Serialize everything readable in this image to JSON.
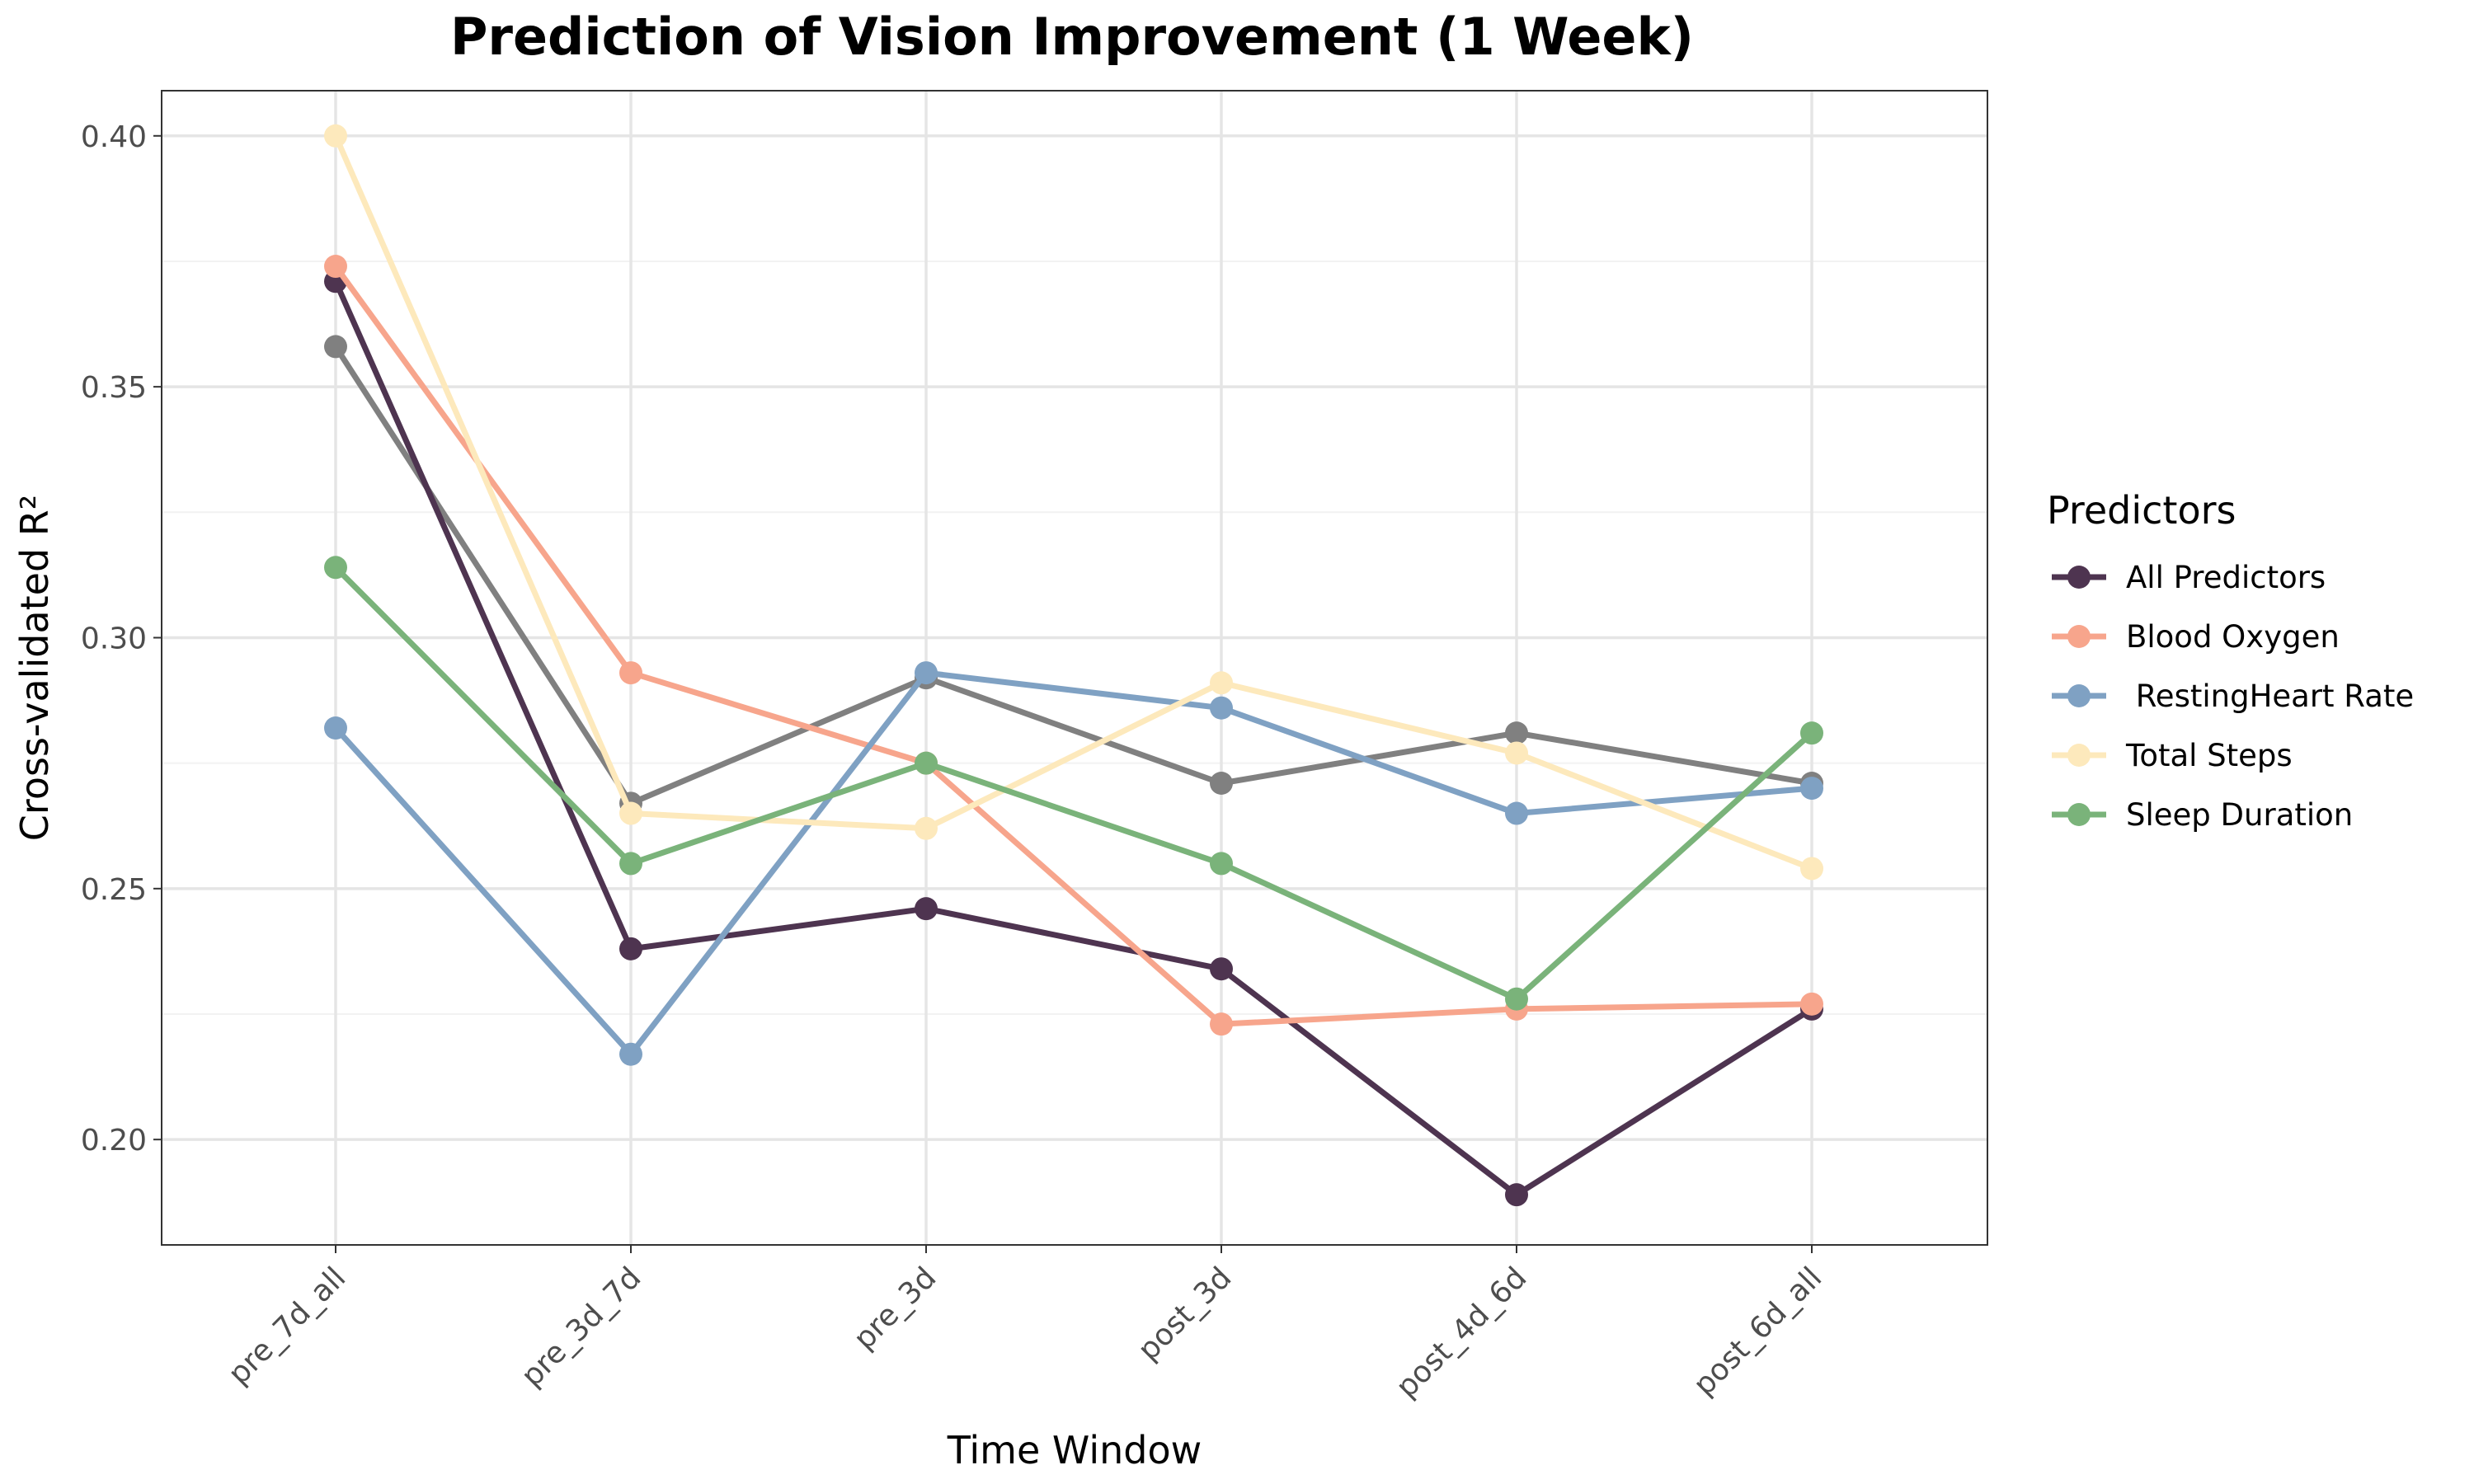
{
  "chart_data": {
    "type": "line",
    "title": "Prediction of Vision Improvement (1 Week)",
    "xlabel": "Time Window",
    "ylabel": "Cross-validated R²",
    "categories": [
      "pre_7d_all",
      "pre_3d_7d",
      "pre_3d",
      "post_3d",
      "post_4d_6d",
      "post_6d_all"
    ],
    "ylim": [
      0.179,
      0.409
    ],
    "yticks": [
      0.2,
      0.25,
      0.3,
      0.35,
      0.4
    ],
    "ytick_labels": [
      "0.20",
      "0.25",
      "0.30",
      "0.35",
      "0.40"
    ],
    "grid": true,
    "legend": {
      "title": "Predictors",
      "position": "right"
    },
    "series": [
      {
        "name": "",
        "color": "#808080",
        "in_legend": false,
        "values": [
          0.358,
          0.267,
          0.292,
          0.271,
          0.281,
          0.271
        ]
      },
      {
        "name": "All Predictors",
        "color": "#4e3450",
        "in_legend": true,
        "values": [
          0.371,
          0.238,
          0.246,
          0.234,
          0.189,
          0.226
        ]
      },
      {
        "name": "Blood Oxygen",
        "color": "#f7a58c",
        "in_legend": true,
        "values": [
          0.374,
          0.293,
          0.275,
          0.223,
          0.226,
          0.227
        ]
      },
      {
        "name": " RestingHeart Rate",
        "color": "#7fa1c3",
        "in_legend": true,
        "values": [
          0.282,
          0.217,
          0.293,
          0.286,
          0.265,
          0.27
        ]
      },
      {
        "name": "Total Steps",
        "color": "#fde9bc",
        "in_legend": true,
        "values": [
          0.4,
          0.265,
          0.262,
          0.291,
          0.277,
          0.254
        ]
      },
      {
        "name": "Sleep Duration",
        "color": "#7ab37a",
        "in_legend": true,
        "values": [
          0.314,
          0.255,
          0.275,
          0.255,
          0.228,
          0.281
        ]
      }
    ]
  }
}
